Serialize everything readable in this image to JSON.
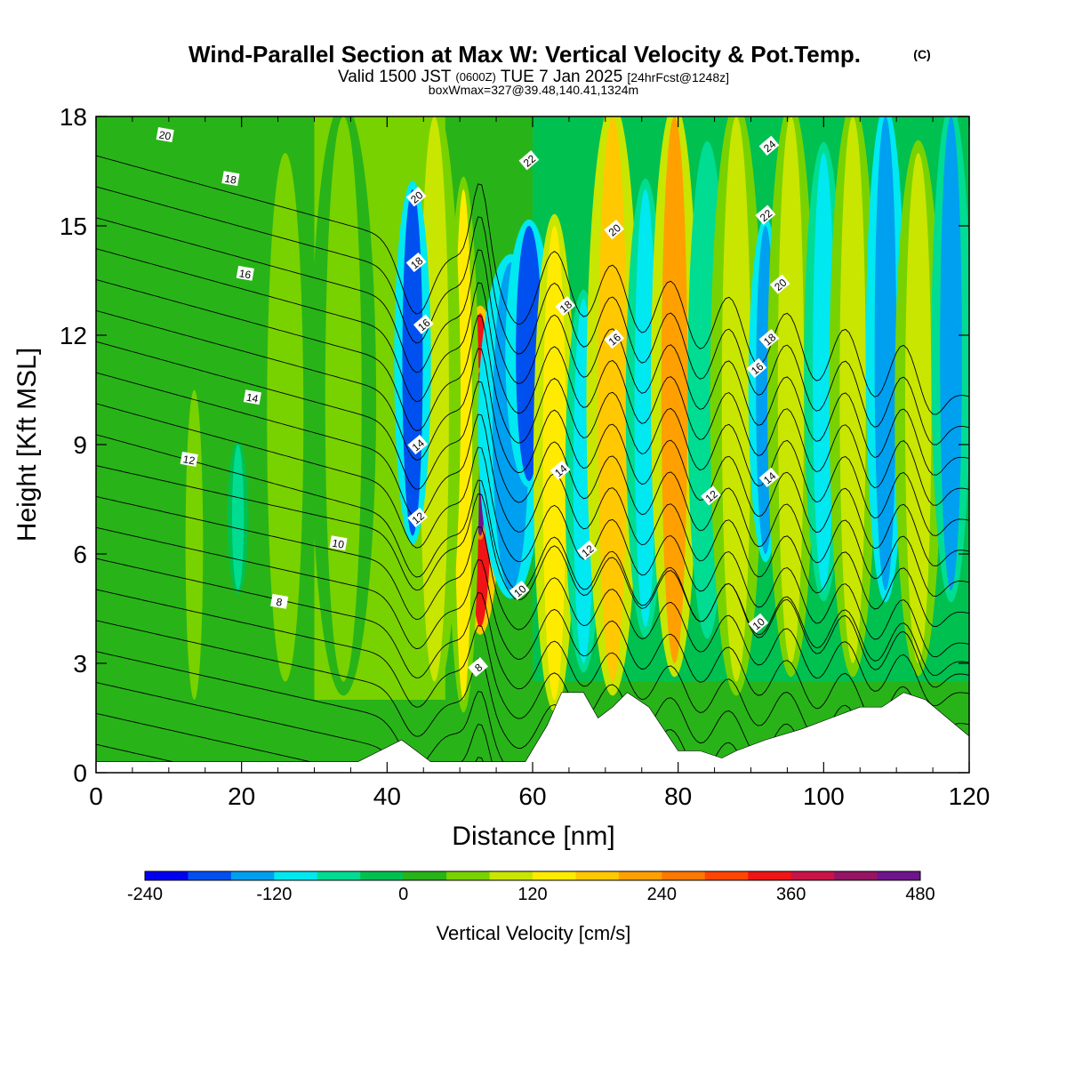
{
  "chart_data": {
    "type": "heatmap",
    "title": "Wind-Parallel Section at Max W: Vertical Velocity & Pot.Temp.",
    "title_mark": "(C)",
    "subtitle": {
      "prefix": "Valid 1500 JST",
      "utc": "(0600Z)",
      "date": "TUE 7 Jan 2025",
      "forecast": "[24hrFcst@1248z]"
    },
    "box_info": "boxWmax=327@39.48,140.41,1324m",
    "xlabel": "Distance [nm]",
    "ylabel": "Height [Kft MSL]",
    "xlim": [
      0,
      120
    ],
    "ylim": [
      0,
      18
    ],
    "xticks": [
      "0",
      "20",
      "40",
      "60",
      "80",
      "100",
      "120"
    ],
    "yticks": [
      "0",
      "3",
      "6",
      "9",
      "12",
      "15",
      "18"
    ],
    "colorbar": {
      "label": "Vertical Velocity [cm/s]",
      "ticks": [
        "-240",
        "-120",
        "0",
        "120",
        "240",
        "360",
        "480"
      ],
      "min": -240,
      "max": 480,
      "step": 40,
      "colors": [
        "#0000f0",
        "#0050f0",
        "#00a0f0",
        "#00e8f0",
        "#00dc92",
        "#00c050",
        "#28b418",
        "#78d200",
        "#c8e600",
        "#ffeb00",
        "#ffc800",
        "#ffa000",
        "#ff7800",
        "#ff4600",
        "#f01414",
        "#c81446",
        "#961464",
        "#6e148c"
      ]
    },
    "velocity_bands": [
      {
        "center": 52.8,
        "width": 1.6,
        "value": 340,
        "z0": 4.0,
        "z1": 12.6
      },
      {
        "center": 52.8,
        "width": 0.9,
        "value": 460,
        "z0": 6.5,
        "z1": 11.0
      },
      {
        "center": 50.5,
        "width": 1.2,
        "value": 130,
        "z0": 2.0,
        "z1": 16.0
      },
      {
        "center": 46.5,
        "width": 2.0,
        "value": 110,
        "z0": 2.5,
        "z1": 18.0
      },
      {
        "center": 43.5,
        "width": 1.4,
        "value": -170,
        "z0": 6.5,
        "z1": 16.0
      },
      {
        "center": 57.0,
        "width": 2.5,
        "value": -160,
        "z0": 5.0,
        "z1": 14.0
      },
      {
        "center": 59.5,
        "width": 1.8,
        "value": -190,
        "z0": 8.0,
        "z1": 15.0
      },
      {
        "center": 63.0,
        "width": 1.6,
        "value": 150,
        "z0": 2.0,
        "z1": 15.0
      },
      {
        "center": 67.0,
        "width": 1.4,
        "value": -100,
        "z0": 3.0,
        "z1": 13.0
      },
      {
        "center": 71.0,
        "width": 2.0,
        "value": 170,
        "z0": 2.5,
        "z1": 18.0
      },
      {
        "center": 75.5,
        "width": 1.5,
        "value": -90,
        "z0": 4.0,
        "z1": 16.0
      },
      {
        "center": 79.5,
        "width": 1.8,
        "value": 200,
        "z0": 3.0,
        "z1": 18.0
      },
      {
        "center": 84.0,
        "width": 1.5,
        "value": -80,
        "z0": 4.0,
        "z1": 17.0
      },
      {
        "center": 88.0,
        "width": 2.0,
        "value": 90,
        "z0": 2.5,
        "z1": 18.0
      },
      {
        "center": 92.0,
        "width": 1.3,
        "value": -150,
        "z0": 6.0,
        "z1": 15.0
      },
      {
        "center": 95.5,
        "width": 1.8,
        "value": 110,
        "z0": 3.0,
        "z1": 18.0
      },
      {
        "center": 100.0,
        "width": 1.5,
        "value": -120,
        "z0": 5.0,
        "z1": 17.0
      },
      {
        "center": 104.0,
        "width": 1.8,
        "value": 110,
        "z0": 3.0,
        "z1": 18.0
      },
      {
        "center": 108.5,
        "width": 1.5,
        "value": -160,
        "z0": 5.0,
        "z1": 18.0
      },
      {
        "center": 113.0,
        "width": 1.8,
        "value": 90,
        "z0": 3.0,
        "z1": 17.0
      },
      {
        "center": 117.5,
        "width": 1.5,
        "value": -130,
        "z0": 5.0,
        "z1": 18.0
      },
      {
        "center": 34.0,
        "width": 2.5,
        "value": 70,
        "z0": 2.5,
        "z1": 18.0
      },
      {
        "center": 26.0,
        "width": 2.5,
        "value": 45,
        "z0": 2.5,
        "z1": 17.0
      },
      {
        "center": 13.5,
        "width": 1.2,
        "value": 45,
        "z0": 2.0,
        "z1": 10.5
      },
      {
        "center": 19.5,
        "width": 0.8,
        "value": -60,
        "z0": 5.0,
        "z1": 9.0
      }
    ],
    "terrain": [
      [
        0,
        0.3
      ],
      [
        36,
        0.3
      ],
      [
        39,
        0.6
      ],
      [
        42,
        0.9
      ],
      [
        44,
        0.6
      ],
      [
        46,
        0.3
      ],
      [
        59,
        0.3
      ],
      [
        62,
        1.3
      ],
      [
        64,
        2.2
      ],
      [
        67,
        2.2
      ],
      [
        69,
        1.5
      ],
      [
        71,
        1.8
      ],
      [
        73,
        2.2
      ],
      [
        76,
        1.8
      ],
      [
        78,
        1.2
      ],
      [
        80,
        0.6
      ],
      [
        83,
        0.6
      ],
      [
        86,
        0.4
      ],
      [
        88,
        0.6
      ],
      [
        92,
        0.9
      ],
      [
        97,
        1.2
      ],
      [
        101,
        1.5
      ],
      [
        105,
        1.8
      ],
      [
        108,
        1.8
      ],
      [
        111,
        2.2
      ],
      [
        114,
        2.0
      ],
      [
        117,
        1.5
      ],
      [
        120,
        1.0
      ]
    ],
    "theta_lines": {
      "levels": [
        6,
        7,
        8,
        9,
        10,
        11,
        12,
        13,
        14,
        15,
        16,
        17,
        18,
        19,
        20,
        21,
        22,
        23,
        24,
        25
      ]
    },
    "contour_labels": [
      {
        "text": "20",
        "x": 9.5,
        "y": 17.5
      },
      {
        "text": "18",
        "x": 18.5,
        "y": 16.3
      },
      {
        "text": "16",
        "x": 20.5,
        "y": 13.7
      },
      {
        "text": "14",
        "x": 21.5,
        "y": 10.3
      },
      {
        "text": "12",
        "x": 12.8,
        "y": 8.6
      },
      {
        "text": "10",
        "x": 33.3,
        "y": 6.3
      },
      {
        "text": "8",
        "x": 25.2,
        "y": 4.7
      },
      {
        "text": "20",
        "x": 44.0,
        "y": 15.8
      },
      {
        "text": "18",
        "x": 44.0,
        "y": 14.0
      },
      {
        "text": "16",
        "x": 45.0,
        "y": 12.3
      },
      {
        "text": "14",
        "x": 44.2,
        "y": 9.0
      },
      {
        "text": "12",
        "x": 44.2,
        "y": 7.0
      },
      {
        "text": "8",
        "x": 52.5,
        "y": 2.9
      },
      {
        "text": "10",
        "x": 58.2,
        "y": 5.0
      },
      {
        "text": "22",
        "x": 59.5,
        "y": 16.8
      },
      {
        "text": "18",
        "x": 64.5,
        "y": 12.8
      },
      {
        "text": "14",
        "x": 63.8,
        "y": 8.3
      },
      {
        "text": "12",
        "x": 67.5,
        "y": 6.1
      },
      {
        "text": "20",
        "x": 71.2,
        "y": 14.9
      },
      {
        "text": "16",
        "x": 71.2,
        "y": 11.9
      },
      {
        "text": "24",
        "x": 92.5,
        "y": 17.2
      },
      {
        "text": "22",
        "x": 92.0,
        "y": 15.3
      },
      {
        "text": "20",
        "x": 94.0,
        "y": 13.4
      },
      {
        "text": "18",
        "x": 92.5,
        "y": 11.9
      },
      {
        "text": "16",
        "x": 90.8,
        "y": 11.1
      },
      {
        "text": "14",
        "x": 92.5,
        "y": 8.1
      },
      {
        "text": "12",
        "x": 84.5,
        "y": 7.6
      },
      {
        "text": "10",
        "x": 91.0,
        "y": 4.1
      }
    ]
  }
}
